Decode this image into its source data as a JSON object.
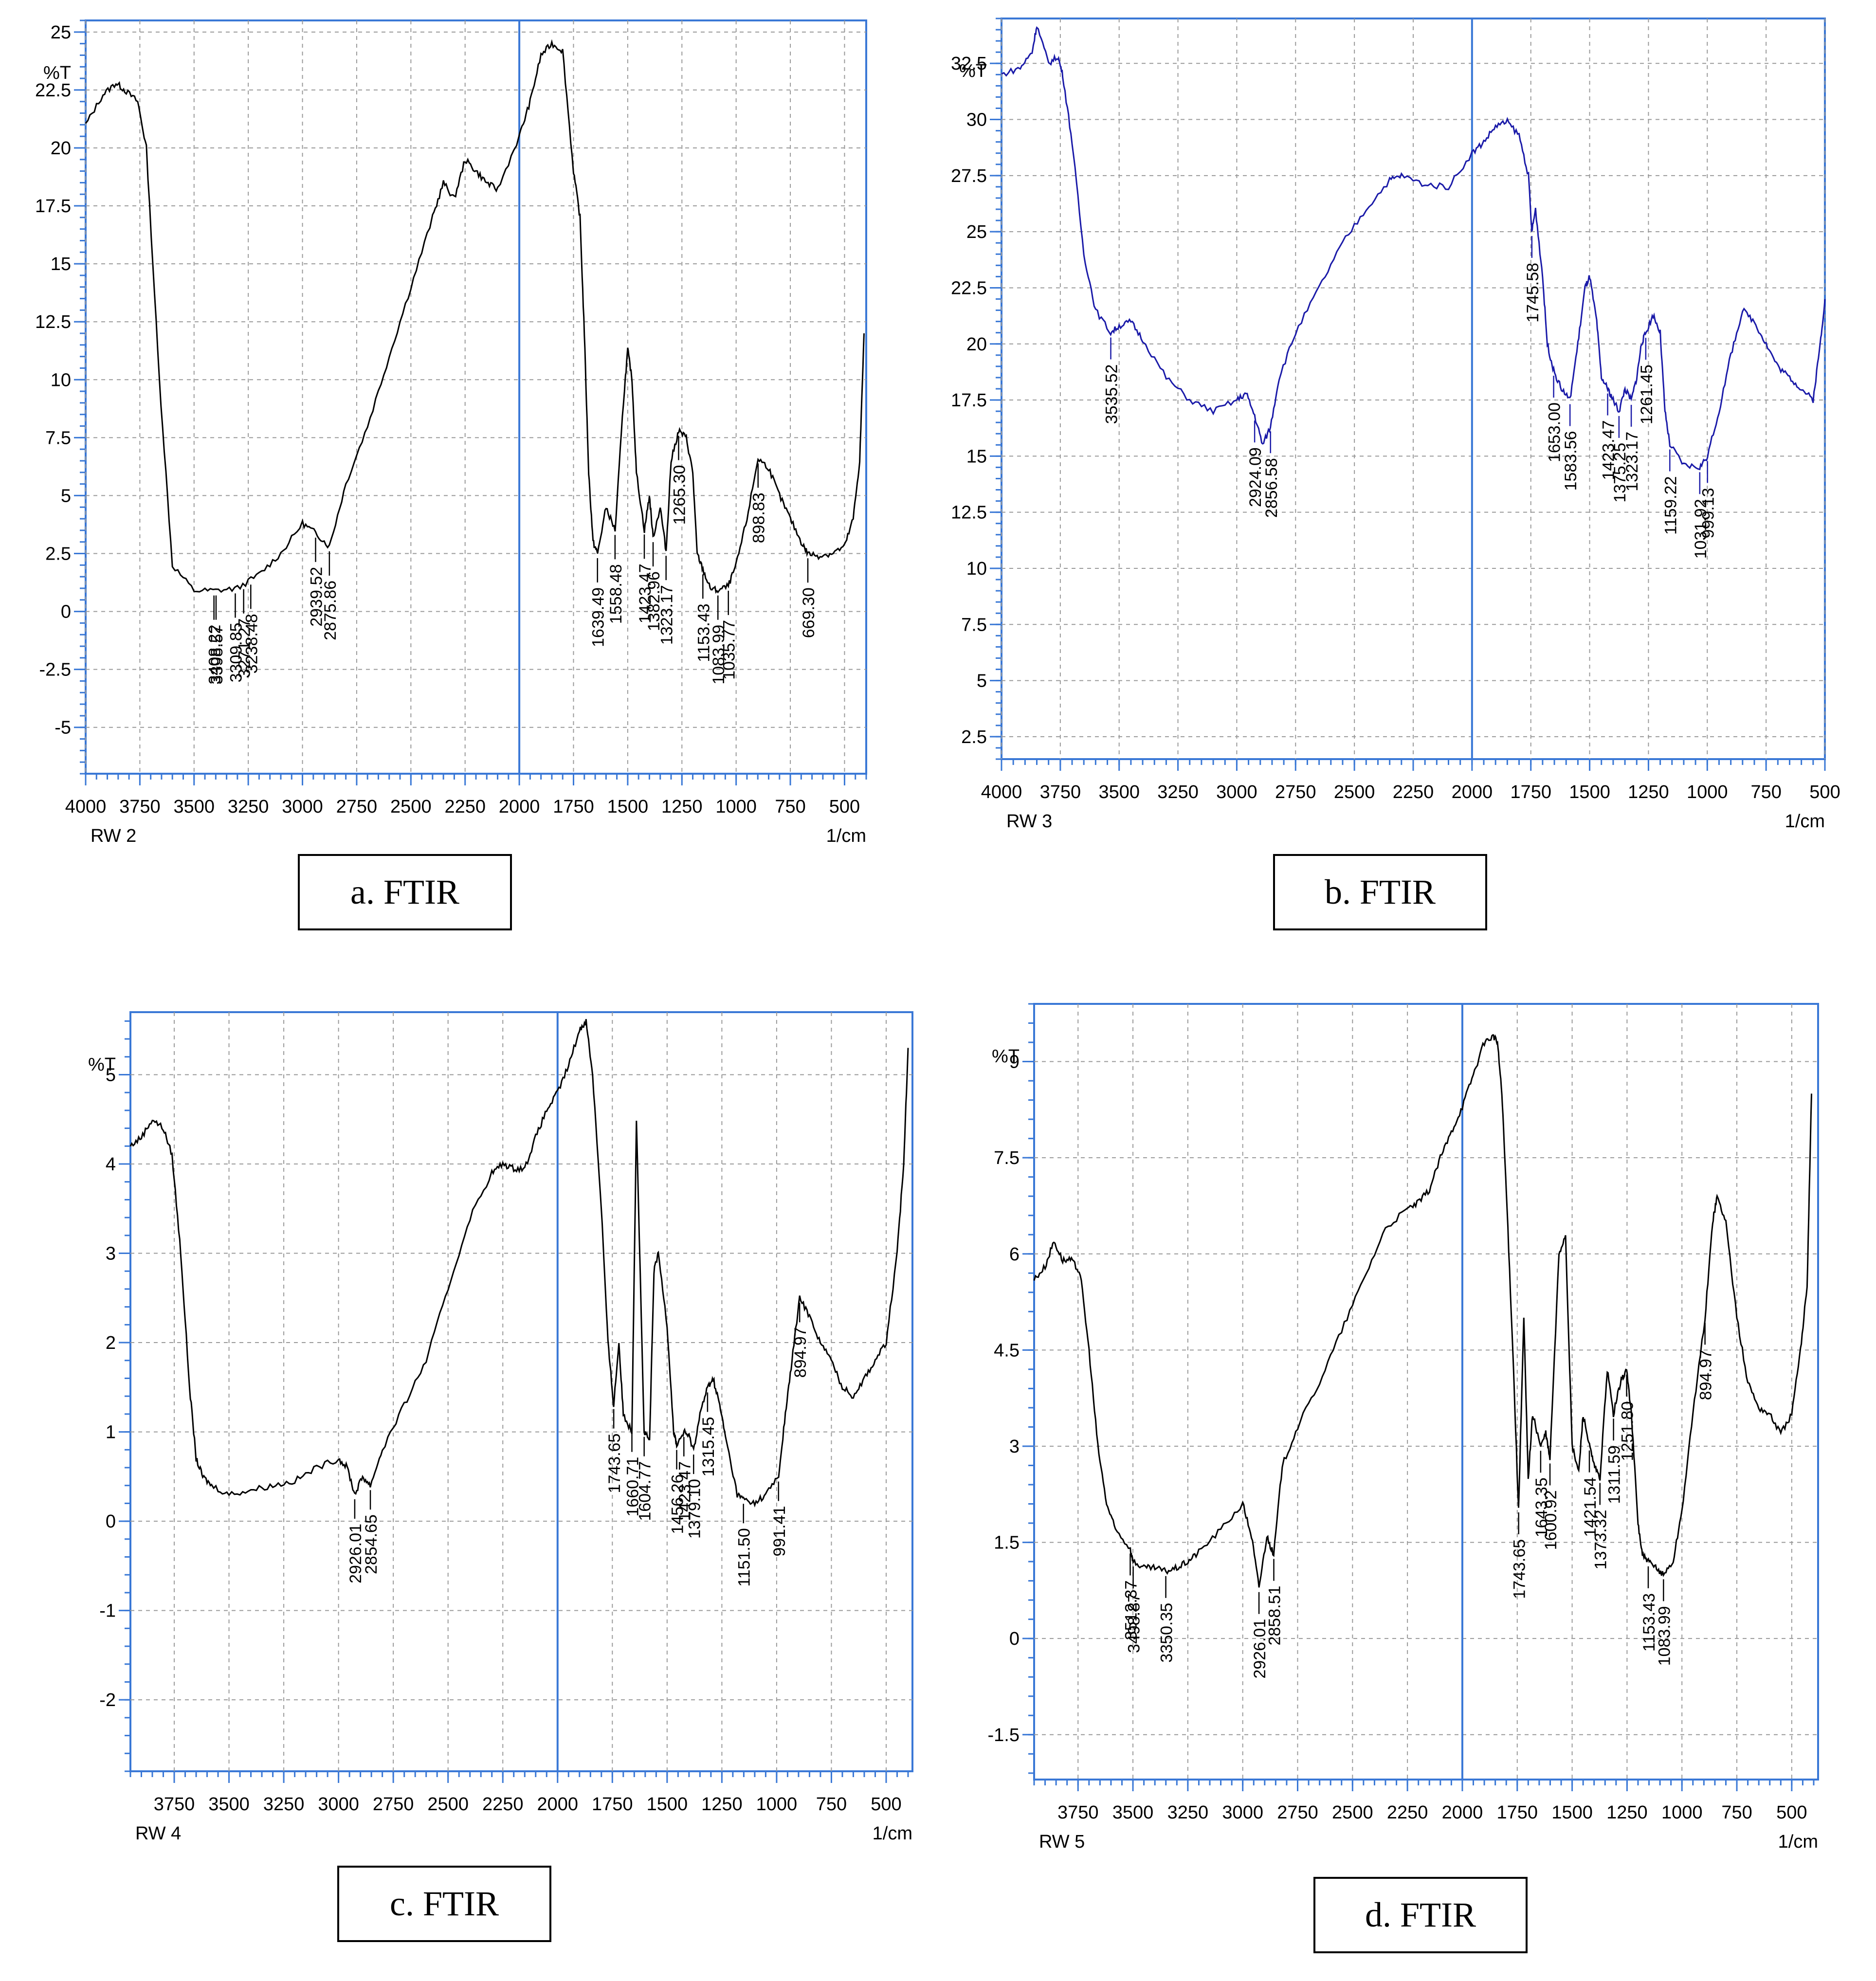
{
  "chart_data": [
    {
      "type": "line",
      "panel_caption": "a.   FTIR",
      "sample_label": "RW 2",
      "ylabel": "%T",
      "xlabel": "1/cm",
      "xlim": [
        4000,
        400
      ],
      "ylim": [
        -7,
        25.5
      ],
      "x_ticks": [
        4000,
        3750,
        3500,
        3250,
        3000,
        2750,
        2500,
        2250,
        2000,
        1750,
        1500,
        1250,
        1000,
        750,
        500
      ],
      "y_ticks": [
        25,
        22.5,
        20,
        17.5,
        15,
        12.5,
        10,
        7.5,
        5,
        2.5,
        0,
        -2.5,
        -5
      ],
      "line_color": "#000000",
      "grid": true,
      "spectrum": {
        "x": [
          4000,
          3920,
          3860,
          3820,
          3760,
          3720,
          3660,
          3600,
          3500,
          3400,
          3300,
          3200,
          3100,
          3000,
          2940,
          2876,
          2800,
          2700,
          2600,
          2500,
          2400,
          2350,
          2300,
          2250,
          2200,
          2150,
          2100,
          2000,
          1950,
          1900,
          1850,
          1800,
          1750,
          1720,
          1700,
          1680,
          1660,
          1639,
          1600,
          1558,
          1520,
          1500,
          1480,
          1460,
          1423,
          1400,
          1383,
          1350,
          1323,
          1300,
          1265,
          1230,
          1200,
          1180,
          1153,
          1120,
          1084,
          1036,
          1000,
          950,
          899,
          850,
          800,
          750,
          700,
          669,
          620,
          560,
          500,
          460,
          430,
          410
        ],
        "y": [
          21,
          22.3,
          22.8,
          22.5,
          22,
          20,
          10,
          2,
          0.9,
          0.9,
          1.0,
          1.6,
          2.5,
          3.8,
          3.4,
          2.8,
          5.5,
          8,
          11,
          14,
          17,
          18.5,
          17.8,
          19.5,
          19,
          18.5,
          18.2,
          20.5,
          22,
          24,
          24.5,
          24.2,
          19,
          17,
          12,
          6,
          3,
          2.5,
          4.5,
          3.5,
          9,
          11.3,
          10,
          6,
          3.5,
          5,
          3.2,
          4.5,
          2.6,
          6.5,
          7.8,
          7.5,
          6,
          2.5,
          1.8,
          1.0,
          0.9,
          1.1,
          2,
          4,
          6.6,
          6.2,
          5,
          4,
          3,
          2.5,
          2.4,
          2.5,
          2.8,
          4,
          6.5,
          12
        ]
      },
      "peak_labels": [
        {
          "x": 3408.22,
          "label": "3408.22"
        },
        {
          "x": 3398.57,
          "label": "3398.57"
        },
        {
          "x": 3309.85,
          "label": "3309.85"
        },
        {
          "x": 3271.27,
          "label": "3271.27"
        },
        {
          "x": 3238.48,
          "label": "3238.48"
        },
        {
          "x": 2939.52,
          "label": "2939.52"
        },
        {
          "x": 2875.86,
          "label": "2875.86"
        },
        {
          "x": 1639.49,
          "label": "1639.49"
        },
        {
          "x": 1558.48,
          "label": "1558.48"
        },
        {
          "x": 1423.47,
          "label": "1423.47"
        },
        {
          "x": 1382.96,
          "label": "1382.96"
        },
        {
          "x": 1323.17,
          "label": "1323.17"
        },
        {
          "x": 1265.3,
          "label": "1265.30"
        },
        {
          "x": 1153.43,
          "label": "1153.43"
        },
        {
          "x": 1083.99,
          "label": "1083.99"
        },
        {
          "x": 1035.77,
          "label": "1035.77"
        },
        {
          "x": 898.83,
          "label": "898.83"
        },
        {
          "x": 669.3,
          "label": "669.30"
        }
      ]
    },
    {
      "type": "line",
      "panel_caption": "b.   FTIR",
      "sample_label": "RW 3",
      "ylabel": "%T",
      "xlabel": "1/cm",
      "xlim": [
        4000,
        500
      ],
      "ylim": [
        1.5,
        34.5
      ],
      "x_ticks": [
        4000,
        3750,
        3500,
        3250,
        3000,
        2750,
        2500,
        2250,
        2000,
        1750,
        1500,
        1250,
        1000,
        750,
        500
      ],
      "y_ticks": [
        32.5,
        30,
        27.5,
        25,
        22.5,
        20,
        17.5,
        15,
        12.5,
        10,
        7.5,
        5,
        2.5
      ],
      "line_color": "#1a1aa8",
      "grid": true,
      "spectrum": {
        "x": [
          4000,
          3920,
          3870,
          3850,
          3800,
          3760,
          3740,
          3700,
          3650,
          3600,
          3536,
          3500,
          3450,
          3400,
          3300,
          3200,
          3100,
          3000,
          2960,
          2924,
          2890,
          2857,
          2820,
          2750,
          2650,
          2550,
          2450,
          2350,
          2300,
          2200,
          2100,
          2000,
          1950,
          1900,
          1850,
          1800,
          1760,
          1746,
          1730,
          1700,
          1680,
          1653,
          1620,
          1584,
          1550,
          1520,
          1500,
          1470,
          1450,
          1423,
          1400,
          1375,
          1350,
          1323,
          1300,
          1280,
          1261,
          1230,
          1200,
          1180,
          1159,
          1100,
          1032,
          999,
          950,
          900,
          850,
          800,
          750,
          700,
          650,
          600,
          550,
          520,
          500
        ],
        "y": [
          32,
          32.3,
          33,
          34.2,
          32.5,
          32.8,
          32,
          29,
          24,
          21.5,
          20.5,
          20.8,
          21,
          20.2,
          18.5,
          17.5,
          17,
          17.5,
          17.8,
          16.8,
          15.5,
          16.3,
          18.5,
          20.5,
          22.5,
          24.5,
          26,
          27.3,
          27.5,
          27.1,
          27,
          28.5,
          29,
          29.7,
          29.9,
          29.3,
          27.5,
          25,
          26,
          23,
          20,
          18.8,
          18,
          17.5,
          20,
          22.5,
          23,
          21,
          18.5,
          18,
          17.5,
          17,
          18,
          17.5,
          18.5,
          20,
          20.5,
          21.3,
          20.5,
          17,
          15.5,
          14.6,
          14.5,
          15,
          17,
          19.5,
          21.5,
          21,
          20,
          19,
          18.5,
          18,
          17.5,
          20,
          22
        ]
      },
      "peak_labels": [
        {
          "x": 3535.52,
          "label": "3535.52"
        },
        {
          "x": 2924.09,
          "label": "2924.09"
        },
        {
          "x": 2856.58,
          "label": "2856.58"
        },
        {
          "x": 1745.58,
          "label": "1745.58"
        },
        {
          "x": 1653.0,
          "label": "1653.00"
        },
        {
          "x": 1583.56,
          "label": "1583.56"
        },
        {
          "x": 1423.47,
          "label": "1423.47"
        },
        {
          "x": 1375.25,
          "label": "1375.25"
        },
        {
          "x": 1323.17,
          "label": "1323.17"
        },
        {
          "x": 1261.45,
          "label": "1261.45"
        },
        {
          "x": 1159.22,
          "label": "1159.22"
        },
        {
          "x": 1031.92,
          "label": "1031.92"
        },
        {
          "x": 999.13,
          "label": "999.13"
        }
      ]
    },
    {
      "type": "line",
      "panel_caption": "c.   FTIR",
      "sample_label": "RW 4",
      "ylabel": "%T",
      "xlabel": "1/cm",
      "xlim": [
        3950,
        380
      ],
      "ylim": [
        -2.8,
        5.7
      ],
      "x_ticks": [
        3750,
        3500,
        3250,
        3000,
        2750,
        2500,
        2250,
        2000,
        1750,
        1500,
        1250,
        1000,
        750,
        500
      ],
      "y_ticks": [
        5,
        4,
        3,
        2,
        1,
        0,
        -1,
        -2
      ],
      "line_color": "#000000",
      "grid": true,
      "spectrum": {
        "x": [
          3950,
          3900,
          3850,
          3800,
          3760,
          3720,
          3680,
          3650,
          3620,
          3580,
          3500,
          3400,
          3300,
          3200,
          3100,
          3000,
          2960,
          2926,
          2890,
          2855,
          2800,
          2700,
          2600,
          2500,
          2400,
          2300,
          2250,
          2200,
          2150,
          2100,
          2050,
          2000,
          1950,
          1900,
          1870,
          1840,
          1800,
          1770,
          1744,
          1720,
          1700,
          1661,
          1640,
          1605,
          1580,
          1560,
          1540,
          1500,
          1470,
          1456,
          1423,
          1400,
          1379,
          1350,
          1315,
          1290,
          1260,
          1230,
          1180,
          1152,
          1100,
          1050,
          991,
          960,
          930,
          895,
          850,
          800,
          750,
          700,
          650,
          600,
          550,
          500,
          450,
          420,
          400
        ],
        "y": [
          4.2,
          4.3,
          4.5,
          4.4,
          4.1,
          3.0,
          1.5,
          0.7,
          0.5,
          0.4,
          0.3,
          0.35,
          0.4,
          0.45,
          0.6,
          0.7,
          0.6,
          0.3,
          0.5,
          0.4,
          0.8,
          1.3,
          1.8,
          2.6,
          3.4,
          3.9,
          4.0,
          3.95,
          3.95,
          4.3,
          4.6,
          4.8,
          5.1,
          5.5,
          5.6,
          5.0,
          3.5,
          2.0,
          1.3,
          2.0,
          1.2,
          1.0,
          4.5,
          1.0,
          0.9,
          2.8,
          3.0,
          2.2,
          1.0,
          0.85,
          1.0,
          0.95,
          0.8,
          1.2,
          1.5,
          1.6,
          1.3,
          0.9,
          0.3,
          0.25,
          0.2,
          0.3,
          0.5,
          1.2,
          1.8,
          2.5,
          2.3,
          2.0,
          1.8,
          1.5,
          1.4,
          1.6,
          1.8,
          2.0,
          3.0,
          4.0,
          5.3
        ]
      },
      "peak_labels": [
        {
          "x": 2926.01,
          "label": "2926.01"
        },
        {
          "x": 2854.65,
          "label": "2854.65"
        },
        {
          "x": 1743.65,
          "label": "1743.65"
        },
        {
          "x": 1660.71,
          "label": "1660.71"
        },
        {
          "x": 1604.77,
          "label": "1604.77"
        },
        {
          "x": 1456.26,
          "label": "1456.26"
        },
        {
          "x": 1423.47,
          "label": "1423.47"
        },
        {
          "x": 1379.1,
          "label": "1379.10"
        },
        {
          "x": 1315.45,
          "label": "1315.45"
        },
        {
          "x": 1151.5,
          "label": "1151.50"
        },
        {
          "x": 991.41,
          "label": "991.41"
        },
        {
          "x": 894.97,
          "label": "894.97"
        }
      ]
    },
    {
      "type": "line",
      "panel_caption": "d.   FTIR",
      "sample_label": "RW 5",
      "ylabel": "%T",
      "xlabel": "1/cm",
      "xlim": [
        3950,
        380
      ],
      "ylim": [
        -2.2,
        9.9
      ],
      "x_ticks": [
        3750,
        3500,
        3250,
        3000,
        2750,
        2500,
        2250,
        2000,
        1750,
        1500,
        1250,
        1000,
        750,
        500
      ],
      "y_ticks": [
        9,
        7.5,
        6,
        4.5,
        3,
        1.5,
        0,
        -1.5
      ],
      "line_color": "#000000",
      "grid": true,
      "spectrum": {
        "x": [
          3950,
          3900,
          3860,
          3820,
          3780,
          3740,
          3700,
          3660,
          3620,
          3580,
          3512,
          3499,
          3450,
          3400,
          3350,
          3300,
          3250,
          3200,
          3100,
          3000,
          2960,
          2926,
          2890,
          2859,
          2820,
          2750,
          2650,
          2550,
          2450,
          2350,
          2250,
          2200,
          2150,
          2100,
          2050,
          2000,
          1950,
          1900,
          1860,
          1840,
          1820,
          1800,
          1770,
          1744,
          1720,
          1700,
          1680,
          1643,
          1620,
          1601,
          1560,
          1530,
          1500,
          1470,
          1450,
          1421,
          1400,
          1373,
          1340,
          1312,
          1280,
          1252,
          1230,
          1200,
          1180,
          1153,
          1120,
          1084,
          1040,
          1000,
          950,
          895,
          860,
          840,
          800,
          750,
          700,
          650,
          600,
          550,
          500,
          460,
          430,
          410
        ],
        "y": [
          5.6,
          5.8,
          6.2,
          5.9,
          5.9,
          5.7,
          4.5,
          3.0,
          2.1,
          1.7,
          1.4,
          1.2,
          1.1,
          1.1,
          1.05,
          1.1,
          1.2,
          1.35,
          1.7,
          2.1,
          1.6,
          0.8,
          1.6,
          1.3,
          2.7,
          3.3,
          4.0,
          4.8,
          5.6,
          6.4,
          6.7,
          6.8,
          7.0,
          7.5,
          7.9,
          8.3,
          8.8,
          9.3,
          9.4,
          9.3,
          8.5,
          7.0,
          4.5,
          2.0,
          5.0,
          2.5,
          3.5,
          3.0,
          3.2,
          2.8,
          6.0,
          6.3,
          3.0,
          2.6,
          3.5,
          3.0,
          2.7,
          2.5,
          4.2,
          3.5,
          4.0,
          4.2,
          3.5,
          1.8,
          1.3,
          1.2,
          1.1,
          1.0,
          1.2,
          2.0,
          3.5,
          5.0,
          6.5,
          6.9,
          6.5,
          5.0,
          4.0,
          3.6,
          3.5,
          3.2,
          3.5,
          4.5,
          5.5,
          8.5
        ]
      },
      "peak_labels": [
        {
          "x": 3512.37,
          "label": "3512.37"
        },
        {
          "x": 3498.87,
          "label": "3498.87"
        },
        {
          "x": 3350.35,
          "label": "3350.35"
        },
        {
          "x": 2926.01,
          "label": "2926.01"
        },
        {
          "x": 2858.51,
          "label": "2858.51"
        },
        {
          "x": 1743.65,
          "label": "1743.65"
        },
        {
          "x": 1643.35,
          "label": "1643.35"
        },
        {
          "x": 1600.92,
          "label": "1600.92"
        },
        {
          "x": 1421.54,
          "label": "1421.54"
        },
        {
          "x": 1373.32,
          "label": "1373.32"
        },
        {
          "x": 1311.59,
          "label": "1311.59"
        },
        {
          "x": 1251.8,
          "label": "1251.80"
        },
        {
          "x": 1153.43,
          "label": "1153.43"
        },
        {
          "x": 1083.99,
          "label": "1083.99"
        },
        {
          "x": 894.97,
          "label": "894.97"
        }
      ]
    }
  ]
}
